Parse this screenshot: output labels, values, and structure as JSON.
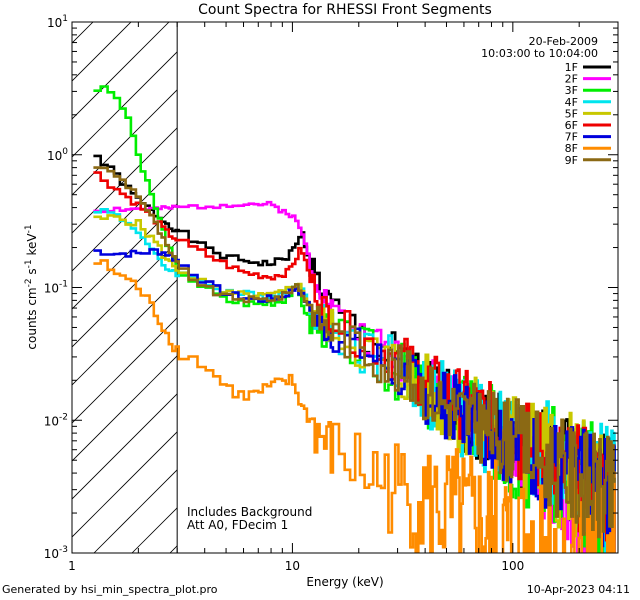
{
  "chart_data": {
    "type": "line",
    "title": "Count Spectra for RHESSI Front Segments",
    "xlabel": "Energy (keV)",
    "ylabel_parts": [
      "counts cm",
      "-2",
      " s",
      "-1",
      " keV",
      "-1"
    ],
    "xscale": "log",
    "yscale": "log",
    "xlim": [
      1,
      300
    ],
    "ylim": [
      0.001,
      10
    ],
    "x_ticks": [
      {
        "value": 1,
        "label": "1"
      },
      {
        "value": 10,
        "label": "10"
      },
      {
        "value": 100,
        "label": "100"
      }
    ],
    "y_ticks": [
      {
        "value": 0.001,
        "base": "10",
        "exp": "-3"
      },
      {
        "value": 0.01,
        "base": "10",
        "exp": "-2"
      },
      {
        "value": 0.1,
        "base": "10",
        "exp": "-1"
      },
      {
        "value": 1,
        "base": "10",
        "exp": "0"
      },
      {
        "value": 10,
        "base": "10",
        "exp": "1"
      }
    ],
    "hatched_region": [
      1,
      3
    ],
    "info": {
      "date": "20-Feb-2009",
      "time_range": "10:03:00 to 10:04:00"
    },
    "annotations": [
      "Includes Background",
      "Att A0, FDecim 1"
    ],
    "series": [
      {
        "name": "1F",
        "color": "#000000",
        "noise": 0.1,
        "points": [
          [
            1.2,
            1.15
          ],
          [
            1.35,
            0.9
          ],
          [
            1.6,
            0.7
          ],
          [
            1.9,
            0.5
          ],
          [
            2.2,
            0.4
          ],
          [
            2.6,
            0.32
          ],
          [
            3.0,
            0.27
          ],
          [
            4.0,
            0.2
          ],
          [
            5.0,
            0.17
          ],
          [
            6.0,
            0.16
          ],
          [
            8.0,
            0.15
          ],
          [
            9.5,
            0.17
          ],
          [
            10.5,
            0.21
          ],
          [
            11.0,
            0.27
          ],
          [
            12.0,
            0.16
          ],
          [
            14.0,
            0.085
          ],
          [
            17.0,
            0.055
          ],
          [
            20.0,
            0.045
          ],
          [
            30.0,
            0.028
          ],
          [
            40.0,
            0.018
          ],
          [
            60.0,
            0.011
          ],
          [
            100.0,
            0.007
          ],
          [
            150.0,
            0.005
          ],
          [
            200.0,
            0.0038
          ],
          [
            250.0,
            0.003
          ],
          [
            290.0,
            0.0028
          ]
        ]
      },
      {
        "name": "2F",
        "color": "#ff00ff",
        "noise": 0.08,
        "points": [
          [
            1.25,
            0.38
          ],
          [
            1.6,
            0.39
          ],
          [
            2.0,
            0.39
          ],
          [
            2.6,
            0.39
          ],
          [
            3.0,
            0.4
          ],
          [
            4.0,
            0.41
          ],
          [
            5.0,
            0.42
          ],
          [
            6.0,
            0.43
          ],
          [
            8.0,
            0.42
          ],
          [
            9.0,
            0.38
          ],
          [
            10.0,
            0.35
          ],
          [
            11.0,
            0.27
          ],
          [
            12.0,
            0.16
          ],
          [
            14.0,
            0.085
          ],
          [
            17.0,
            0.055
          ],
          [
            20.0,
            0.045
          ],
          [
            30.0,
            0.03
          ],
          [
            40.0,
            0.02
          ],
          [
            60.0,
            0.013
          ],
          [
            80.0,
            0.008
          ],
          [
            100.0,
            0.006
          ],
          [
            150.0,
            0.003
          ],
          [
            200.0,
            0.0017
          ],
          [
            250.0,
            0.0013
          ],
          [
            290.0,
            0.0011
          ]
        ]
      },
      {
        "name": "3F",
        "color": "#00ee00",
        "noise": 0.12,
        "points": [
          [
            1.25,
            3.2
          ],
          [
            1.5,
            3.0
          ],
          [
            1.7,
            2.3
          ],
          [
            1.9,
            1.4
          ],
          [
            2.1,
            0.75
          ],
          [
            2.4,
            0.4
          ],
          [
            2.7,
            0.22
          ],
          [
            3.0,
            0.14
          ],
          [
            4.0,
            0.1
          ],
          [
            5.0,
            0.08
          ],
          [
            7.0,
            0.075
          ],
          [
            9.0,
            0.08
          ],
          [
            10.5,
            0.1
          ],
          [
            11.0,
            0.08
          ],
          [
            12.0,
            0.055
          ],
          [
            15.0,
            0.045
          ],
          [
            20.0,
            0.035
          ],
          [
            30.0,
            0.024
          ],
          [
            40.0,
            0.016
          ],
          [
            60.0,
            0.011
          ],
          [
            100.0,
            0.0065
          ],
          [
            150.0,
            0.0045
          ],
          [
            200.0,
            0.0035
          ],
          [
            250.0,
            0.0028
          ],
          [
            290.0,
            0.0025
          ]
        ]
      },
      {
        "name": "4F",
        "color": "#00e5ee",
        "noise": 0.12,
        "points": [
          [
            1.25,
            0.4
          ],
          [
            1.6,
            0.35
          ],
          [
            2.0,
            0.27
          ],
          [
            2.4,
            0.17
          ],
          [
            2.7,
            0.14
          ],
          [
            3.0,
            0.13
          ],
          [
            4.0,
            0.11
          ],
          [
            5.0,
            0.095
          ],
          [
            7.0,
            0.085
          ],
          [
            9.0,
            0.09
          ],
          [
            10.5,
            0.11
          ],
          [
            11.5,
            0.085
          ],
          [
            13.0,
            0.06
          ],
          [
            15.0,
            0.05
          ],
          [
            20.0,
            0.036
          ],
          [
            30.0,
            0.025
          ],
          [
            40.0,
            0.017
          ],
          [
            60.0,
            0.011
          ],
          [
            100.0,
            0.007
          ],
          [
            150.0,
            0.0048
          ],
          [
            200.0,
            0.0036
          ],
          [
            250.0,
            0.003
          ],
          [
            290.0,
            0.0027
          ]
        ]
      },
      {
        "name": "5F",
        "color": "#c8c800",
        "noise": 0.12,
        "points": [
          [
            1.25,
            0.32
          ],
          [
            1.6,
            0.34
          ],
          [
            2.0,
            0.3
          ],
          [
            2.4,
            0.22
          ],
          [
            2.7,
            0.16
          ],
          [
            3.0,
            0.14
          ],
          [
            4.0,
            0.11
          ],
          [
            5.0,
            0.09
          ],
          [
            7.0,
            0.085
          ],
          [
            9.0,
            0.09
          ],
          [
            10.5,
            0.11
          ],
          [
            11.5,
            0.085
          ],
          [
            13.0,
            0.06
          ],
          [
            15.0,
            0.05
          ],
          [
            20.0,
            0.036
          ],
          [
            30.0,
            0.025
          ],
          [
            40.0,
            0.017
          ],
          [
            60.0,
            0.011
          ],
          [
            100.0,
            0.007
          ],
          [
            150.0,
            0.0048
          ],
          [
            200.0,
            0.0036
          ],
          [
            250.0,
            0.003
          ],
          [
            290.0,
            0.0027
          ]
        ]
      },
      {
        "name": "6F",
        "color": "#ee0000",
        "noise": 0.1,
        "points": [
          [
            1.25,
            0.75
          ],
          [
            1.6,
            0.55
          ],
          [
            2.0,
            0.42
          ],
          [
            2.4,
            0.32
          ],
          [
            2.7,
            0.26
          ],
          [
            3.0,
            0.23
          ],
          [
            4.0,
            0.18
          ],
          [
            5.0,
            0.15
          ],
          [
            6.0,
            0.13
          ],
          [
            8.0,
            0.12
          ],
          [
            9.5,
            0.13
          ],
          [
            10.5,
            0.17
          ],
          [
            11.0,
            0.2
          ],
          [
            12.0,
            0.12
          ],
          [
            14.0,
            0.07
          ],
          [
            17.0,
            0.05
          ],
          [
            20.0,
            0.042
          ],
          [
            30.0,
            0.03
          ],
          [
            40.0,
            0.02
          ],
          [
            60.0,
            0.013
          ],
          [
            100.0,
            0.0075
          ],
          [
            150.0,
            0.005
          ],
          [
            200.0,
            0.0037
          ],
          [
            250.0,
            0.003
          ],
          [
            290.0,
            0.0026
          ]
        ]
      },
      {
        "name": "7F",
        "color": "#0000dd",
        "noise": 0.1,
        "points": [
          [
            1.25,
            0.19
          ],
          [
            1.6,
            0.18
          ],
          [
            2.0,
            0.18
          ],
          [
            2.4,
            0.19
          ],
          [
            2.7,
            0.18
          ],
          [
            3.0,
            0.16
          ],
          [
            4.0,
            0.11
          ],
          [
            5.0,
            0.09
          ],
          [
            7.0,
            0.08
          ],
          [
            9.0,
            0.085
          ],
          [
            10.5,
            0.1
          ],
          [
            11.5,
            0.08
          ],
          [
            13.0,
            0.055
          ],
          [
            15.0,
            0.045
          ],
          [
            20.0,
            0.035
          ],
          [
            30.0,
            0.023
          ],
          [
            40.0,
            0.016
          ],
          [
            60.0,
            0.011
          ],
          [
            100.0,
            0.0068
          ],
          [
            150.0,
            0.0046
          ],
          [
            200.0,
            0.0035
          ],
          [
            250.0,
            0.0028
          ],
          [
            290.0,
            0.0025
          ]
        ]
      },
      {
        "name": "8F",
        "color": "#ff8c00",
        "noise": 0.2,
        "points": [
          [
            1.25,
            0.16
          ],
          [
            1.6,
            0.13
          ],
          [
            2.0,
            0.1
          ],
          [
            2.4,
            0.065
          ],
          [
            2.7,
            0.045
          ],
          [
            3.0,
            0.034
          ],
          [
            4.0,
            0.026
          ],
          [
            5.0,
            0.018
          ],
          [
            6.0,
            0.015
          ],
          [
            7.0,
            0.016
          ],
          [
            8.0,
            0.018
          ],
          [
            10.0,
            0.02
          ],
          [
            11.0,
            0.013
          ],
          [
            13.0,
            0.008
          ],
          [
            15.0,
            0.006
          ],
          [
            20.0,
            0.0045
          ],
          [
            30.0,
            0.003
          ],
          [
            40.0,
            0.0024
          ],
          [
            60.0,
            0.0017
          ],
          [
            80.0,
            0.0013
          ],
          [
            100.0,
            0.0011
          ],
          [
            150.0,
            0.001
          ],
          [
            200.0,
            0.001
          ],
          [
            290.0,
            0.001
          ]
        ]
      },
      {
        "name": "9F",
        "color": "#8b6914",
        "noise": 0.1,
        "points": [
          [
            1.25,
            0.85
          ],
          [
            1.6,
            0.7
          ],
          [
            2.0,
            0.5
          ],
          [
            2.4,
            0.3
          ],
          [
            2.7,
            0.2
          ],
          [
            3.0,
            0.15
          ],
          [
            4.0,
            0.1
          ],
          [
            5.0,
            0.085
          ],
          [
            7.0,
            0.08
          ],
          [
            9.0,
            0.085
          ],
          [
            10.5,
            0.105
          ],
          [
            11.5,
            0.08
          ],
          [
            13.0,
            0.058
          ],
          [
            15.0,
            0.047
          ],
          [
            20.0,
            0.036
          ],
          [
            30.0,
            0.024
          ],
          [
            40.0,
            0.017
          ],
          [
            60.0,
            0.011
          ],
          [
            100.0,
            0.007
          ],
          [
            150.0,
            0.0047
          ],
          [
            200.0,
            0.0036
          ],
          [
            250.0,
            0.0029
          ],
          [
            290.0,
            0.0026
          ]
        ]
      }
    ]
  },
  "footer": {
    "generated_by": "Generated by hsi_min_spectra_plot.pro",
    "timestamp": "10-Apr-2023 04:11"
  }
}
